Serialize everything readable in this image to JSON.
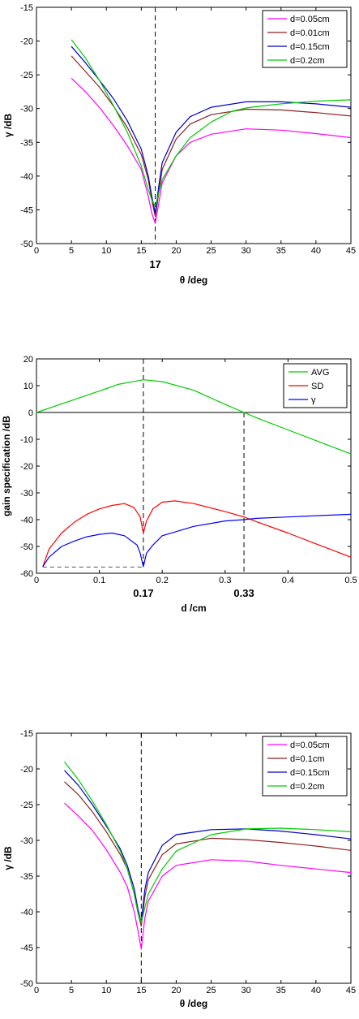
{
  "chart_data": [
    {
      "type": "line",
      "xlabel": "θ /deg",
      "ylabel": "γ /dB",
      "xlim": [
        0,
        45
      ],
      "ylim": [
        -50,
        -15
      ],
      "xticks": [
        "0",
        "5",
        "10",
        "15",
        "20",
        "25",
        "30",
        "35",
        "40",
        "45"
      ],
      "yticks": [
        "-15",
        "-20",
        "-25",
        "-30",
        "-35",
        "-40",
        "-45",
        "-50"
      ],
      "callout": "17",
      "legend_position": "top-right",
      "vlines": [
        {
          "x": 17
        }
      ],
      "series": [
        {
          "name": "d=0.05cm",
          "color": "#ff00ff",
          "points": [
            [
              5,
              -25.5
            ],
            [
              7,
              -27.5
            ],
            [
              9,
              -29.8
            ],
            [
              11,
              -32.5
            ],
            [
              13,
              -35.5
            ],
            [
              15,
              -39
            ],
            [
              16,
              -43
            ],
            [
              16.5,
              -45.5
            ],
            [
              17,
              -47
            ],
            [
              17.5,
              -44
            ],
            [
              18,
              -41
            ],
            [
              20,
              -37
            ],
            [
              22,
              -35
            ],
            [
              25,
              -33.8
            ],
            [
              30,
              -33
            ],
            [
              35,
              -33.2
            ],
            [
              40,
              -33.7
            ],
            [
              45,
              -34.3
            ]
          ]
        },
        {
          "name": "d=0.01cm",
          "color": "#8b2222",
          "points": [
            [
              5,
              -22.2
            ],
            [
              7,
              -24.5
            ],
            [
              9,
              -26.8
            ],
            [
              11,
              -29.6
            ],
            [
              13,
              -32.8
            ],
            [
              15,
              -36.8
            ],
            [
              16,
              -40.5
            ],
            [
              16.5,
              -43.5
            ],
            [
              17,
              -46
            ],
            [
              17.5,
              -42.5
            ],
            [
              18,
              -39
            ],
            [
              20,
              -34.5
            ],
            [
              22,
              -32.3
            ],
            [
              25,
              -30.9
            ],
            [
              30,
              -30.1
            ],
            [
              35,
              -30.2
            ],
            [
              40,
              -30.6
            ],
            [
              45,
              -31.1
            ]
          ]
        },
        {
          "name": "d=0.15cm",
          "color": "#0000cc",
          "points": [
            [
              5,
              -20.8
            ],
            [
              7,
              -23.2
            ],
            [
              9,
              -25.8
            ],
            [
              11,
              -28.5
            ],
            [
              13,
              -31.8
            ],
            [
              15,
              -36
            ],
            [
              16,
              -40
            ],
            [
              16.5,
              -43
            ],
            [
              17,
              -45.5
            ],
            [
              17.5,
              -41.5
            ],
            [
              18,
              -38
            ],
            [
              20,
              -33.5
            ],
            [
              22,
              -31.2
            ],
            [
              25,
              -29.8
            ],
            [
              30,
              -29
            ],
            [
              35,
              -29
            ],
            [
              40,
              -29.3
            ],
            [
              45,
              -29.8
            ]
          ]
        },
        {
          "name": "d=0.2cm",
          "color": "#00cc00",
          "points": [
            [
              5,
              -19.8
            ],
            [
              7,
              -22.5
            ],
            [
              9,
              -25.8
            ],
            [
              11,
              -29.5
            ],
            [
              13,
              -33.5
            ],
            [
              15,
              -38.5
            ],
            [
              16,
              -42
            ],
            [
              16.5,
              -43.5
            ],
            [
              17,
              -44.5
            ],
            [
              17.5,
              -42.5
            ],
            [
              18,
              -40.5
            ],
            [
              20,
              -37
            ],
            [
              22,
              -34.3
            ],
            [
              25,
              -32
            ],
            [
              28,
              -30.4
            ],
            [
              30,
              -29.9
            ],
            [
              35,
              -29.3
            ],
            [
              40,
              -28.9
            ],
            [
              45,
              -28.7
            ]
          ]
        }
      ]
    },
    {
      "type": "line",
      "xlabel": "d /cm",
      "ylabel": "gain specification /dB",
      "xlim": [
        0,
        0.5
      ],
      "ylim": [
        -60,
        20
      ],
      "xticks": [
        "0",
        "0.1",
        "0.2",
        "0.3",
        "0.4",
        "0.5"
      ],
      "yticks": [
        "20",
        "10",
        "0",
        "-10",
        "-20",
        "-30",
        "-40",
        "-50",
        "-60"
      ],
      "callouts": [
        {
          "x": 0.17,
          "label": "0.17"
        },
        {
          "x": 0.33,
          "label": "0.33"
        }
      ],
      "legend_position": "top-right",
      "vlines": [
        {
          "x": 0.17,
          "y_from": -58,
          "y_to": 20
        },
        {
          "x": 0.33,
          "y_from": -60,
          "y_to": 0
        }
      ],
      "hlines": [
        {
          "y": 0,
          "style": "solid"
        },
        {
          "y": -57.7,
          "x_from": 0.01,
          "x_to": 0.17,
          "style": "dashed",
          "color": "#555555"
        }
      ],
      "series": [
        {
          "name": "AVG",
          "color": "#00cc00",
          "points": [
            [
              0,
              0
            ],
            [
              0.05,
              4
            ],
            [
              0.1,
              8
            ],
            [
              0.13,
              10.5
            ],
            [
              0.17,
              12.2
            ],
            [
              0.2,
              11.5
            ],
            [
              0.25,
              8.3
            ],
            [
              0.3,
              3
            ],
            [
              0.33,
              0
            ],
            [
              0.35,
              -2
            ],
            [
              0.4,
              -6.5
            ],
            [
              0.45,
              -11
            ],
            [
              0.5,
              -15.5
            ]
          ]
        },
        {
          "name": "SD",
          "color": "#ff0000",
          "points": [
            [
              0.01,
              -57.5
            ],
            [
              0.02,
              -51
            ],
            [
              0.04,
              -45
            ],
            [
              0.06,
              -41
            ],
            [
              0.08,
              -38
            ],
            [
              0.1,
              -36
            ],
            [
              0.12,
              -34.7
            ],
            [
              0.14,
              -34
            ],
            [
              0.155,
              -35.5
            ],
            [
              0.165,
              -39
            ],
            [
              0.17,
              -45
            ],
            [
              0.175,
              -40.5
            ],
            [
              0.185,
              -36
            ],
            [
              0.2,
              -33.5
            ],
            [
              0.22,
              -33
            ],
            [
              0.25,
              -34
            ],
            [
              0.3,
              -37
            ],
            [
              0.33,
              -39
            ],
            [
              0.35,
              -40.8
            ],
            [
              0.4,
              -45
            ],
            [
              0.45,
              -49.5
            ],
            [
              0.5,
              -54
            ]
          ]
        },
        {
          "name": "γ",
          "color": "#0000ff",
          "points": [
            [
              0.01,
              -57.5
            ],
            [
              0.02,
              -54
            ],
            [
              0.04,
              -50
            ],
            [
              0.06,
              -48
            ],
            [
              0.08,
              -46.4
            ],
            [
              0.1,
              -45.5
            ],
            [
              0.12,
              -45
            ],
            [
              0.14,
              -46
            ],
            [
              0.16,
              -49.5
            ],
            [
              0.165,
              -52.5
            ],
            [
              0.17,
              -57.5
            ],
            [
              0.175,
              -52.5
            ],
            [
              0.185,
              -49.5
            ],
            [
              0.2,
              -46
            ],
            [
              0.25,
              -42.5
            ],
            [
              0.3,
              -40.5
            ],
            [
              0.33,
              -40
            ],
            [
              0.35,
              -39.5
            ],
            [
              0.4,
              -39
            ],
            [
              0.45,
              -38.5
            ],
            [
              0.5,
              -38
            ]
          ]
        }
      ]
    },
    {
      "type": "line",
      "xlabel": "θ /deg",
      "ylabel": "γ /dB",
      "xlim": [
        0,
        45
      ],
      "ylim": [
        -50,
        -15
      ],
      "xticks": [
        "0",
        "5",
        "10",
        "15",
        "20",
        "25",
        "30",
        "35",
        "40",
        "45"
      ],
      "yticks": [
        "-15",
        "-20",
        "-25",
        "-30",
        "-35",
        "-40",
        "-45",
        "-50"
      ],
      "legend_position": "top-right",
      "vlines": [
        {
          "x": 15
        }
      ],
      "series": [
        {
          "name": "d=0.05cm",
          "color": "#ff00ff",
          "points": [
            [
              4,
              -24.8
            ],
            [
              6,
              -26.6
            ],
            [
              8,
              -28.6
            ],
            [
              10,
              -31.3
            ],
            [
              12,
              -34.5
            ],
            [
              13,
              -36.5
            ],
            [
              14,
              -40
            ],
            [
              14.5,
              -42.5
            ],
            [
              15,
              -45.2
            ],
            [
              15.5,
              -41
            ],
            [
              16,
              -38.5
            ],
            [
              18,
              -35
            ],
            [
              20,
              -33.5
            ],
            [
              25,
              -32.7
            ],
            [
              30,
              -32.9
            ],
            [
              35,
              -33.5
            ],
            [
              40,
              -34
            ],
            [
              45,
              -34.5
            ]
          ]
        },
        {
          "name": "d=0.1cm",
          "color": "#8b2222",
          "points": [
            [
              4,
              -21.8
            ],
            [
              6,
              -23.6
            ],
            [
              8,
              -26
            ],
            [
              10,
              -28.8
            ],
            [
              12,
              -32
            ],
            [
              13,
              -34
            ],
            [
              14,
              -37.5
            ],
            [
              14.5,
              -40
            ],
            [
              15,
              -42
            ],
            [
              15.5,
              -38
            ],
            [
              16,
              -35.5
            ],
            [
              18,
              -32
            ],
            [
              20,
              -30.5
            ],
            [
              25,
              -29.7
            ],
            [
              30,
              -29.9
            ],
            [
              35,
              -30.3
            ],
            [
              40,
              -30.8
            ],
            [
              45,
              -31.4
            ]
          ]
        },
        {
          "name": "d=0.15cm",
          "color": "#0000cc",
          "points": [
            [
              4,
              -20.2
            ],
            [
              6,
              -22.3
            ],
            [
              8,
              -25
            ],
            [
              10,
              -28
            ],
            [
              12,
              -31.2
            ],
            [
              13,
              -33.5
            ],
            [
              14,
              -36.8
            ],
            [
              14.5,
              -39.5
            ],
            [
              15,
              -41.5
            ],
            [
              15.5,
              -37
            ],
            [
              16,
              -34.5
            ],
            [
              18,
              -30.7
            ],
            [
              20,
              -29.2
            ],
            [
              25,
              -28.5
            ],
            [
              30,
              -28.4
            ],
            [
              35,
              -28.7
            ],
            [
              40,
              -29.2
            ],
            [
              45,
              -29.8
            ]
          ]
        },
        {
          "name": "d=0.2cm",
          "color": "#00cc00",
          "points": [
            [
              4,
              -19
            ],
            [
              6,
              -21.5
            ],
            [
              8,
              -24.5
            ],
            [
              10,
              -27.8
            ],
            [
              12,
              -31.5
            ],
            [
              13,
              -34
            ],
            [
              14,
              -37.5
            ],
            [
              14.5,
              -40
            ],
            [
              15,
              -41.5
            ],
            [
              15.5,
              -39.5
            ],
            [
              16,
              -37.5
            ],
            [
              18,
              -34
            ],
            [
              20,
              -31.5
            ],
            [
              25,
              -29.2
            ],
            [
              30,
              -28.4
            ],
            [
              35,
              -28.3
            ],
            [
              40,
              -28.5
            ],
            [
              45,
              -28.8
            ]
          ]
        }
      ]
    }
  ]
}
